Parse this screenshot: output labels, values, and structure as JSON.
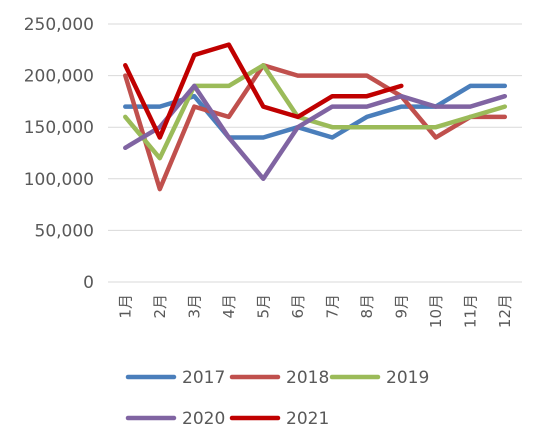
{
  "chart_data": {
    "type": "line",
    "title": "",
    "xlabel": "",
    "ylabel": "",
    "ylim": [
      0,
      250000
    ],
    "yticks": [
      "0",
      "50,000",
      "100,000",
      "150,000",
      "200,000",
      "250,000"
    ],
    "categories": [
      "1月",
      "2月",
      "3月",
      "4月",
      "5月",
      "6月",
      "7月",
      "8月",
      "9月",
      "10月",
      "11月",
      "12月"
    ],
    "grid": "horizontal",
    "legend_position": "bottom",
    "series": [
      {
        "name": "2017",
        "color": "#4A7EBB",
        "values": [
          170000,
          170000,
          180000,
          140000,
          140000,
          150000,
          140000,
          160000,
          170000,
          170000,
          190000,
          190000
        ]
      },
      {
        "name": "2018",
        "color": "#C0504D",
        "values": [
          200000,
          90000,
          170000,
          160000,
          210000,
          200000,
          200000,
          200000,
          180000,
          140000,
          160000,
          160000
        ]
      },
      {
        "name": "2019",
        "color": "#9BBB59",
        "values": [
          160000,
          120000,
          190000,
          190000,
          210000,
          160000,
          150000,
          150000,
          150000,
          150000,
          160000,
          170000
        ]
      },
      {
        "name": "2020",
        "color": "#8064A2",
        "values": [
          130000,
          150000,
          190000,
          140000,
          100000,
          150000,
          170000,
          170000,
          180000,
          170000,
          170000,
          180000
        ]
      },
      {
        "name": "2021",
        "color": "#C00000",
        "values": [
          210000,
          140000,
          220000,
          230000,
          170000,
          160000,
          180000,
          180000,
          190000,
          null,
          null,
          null
        ]
      }
    ]
  }
}
